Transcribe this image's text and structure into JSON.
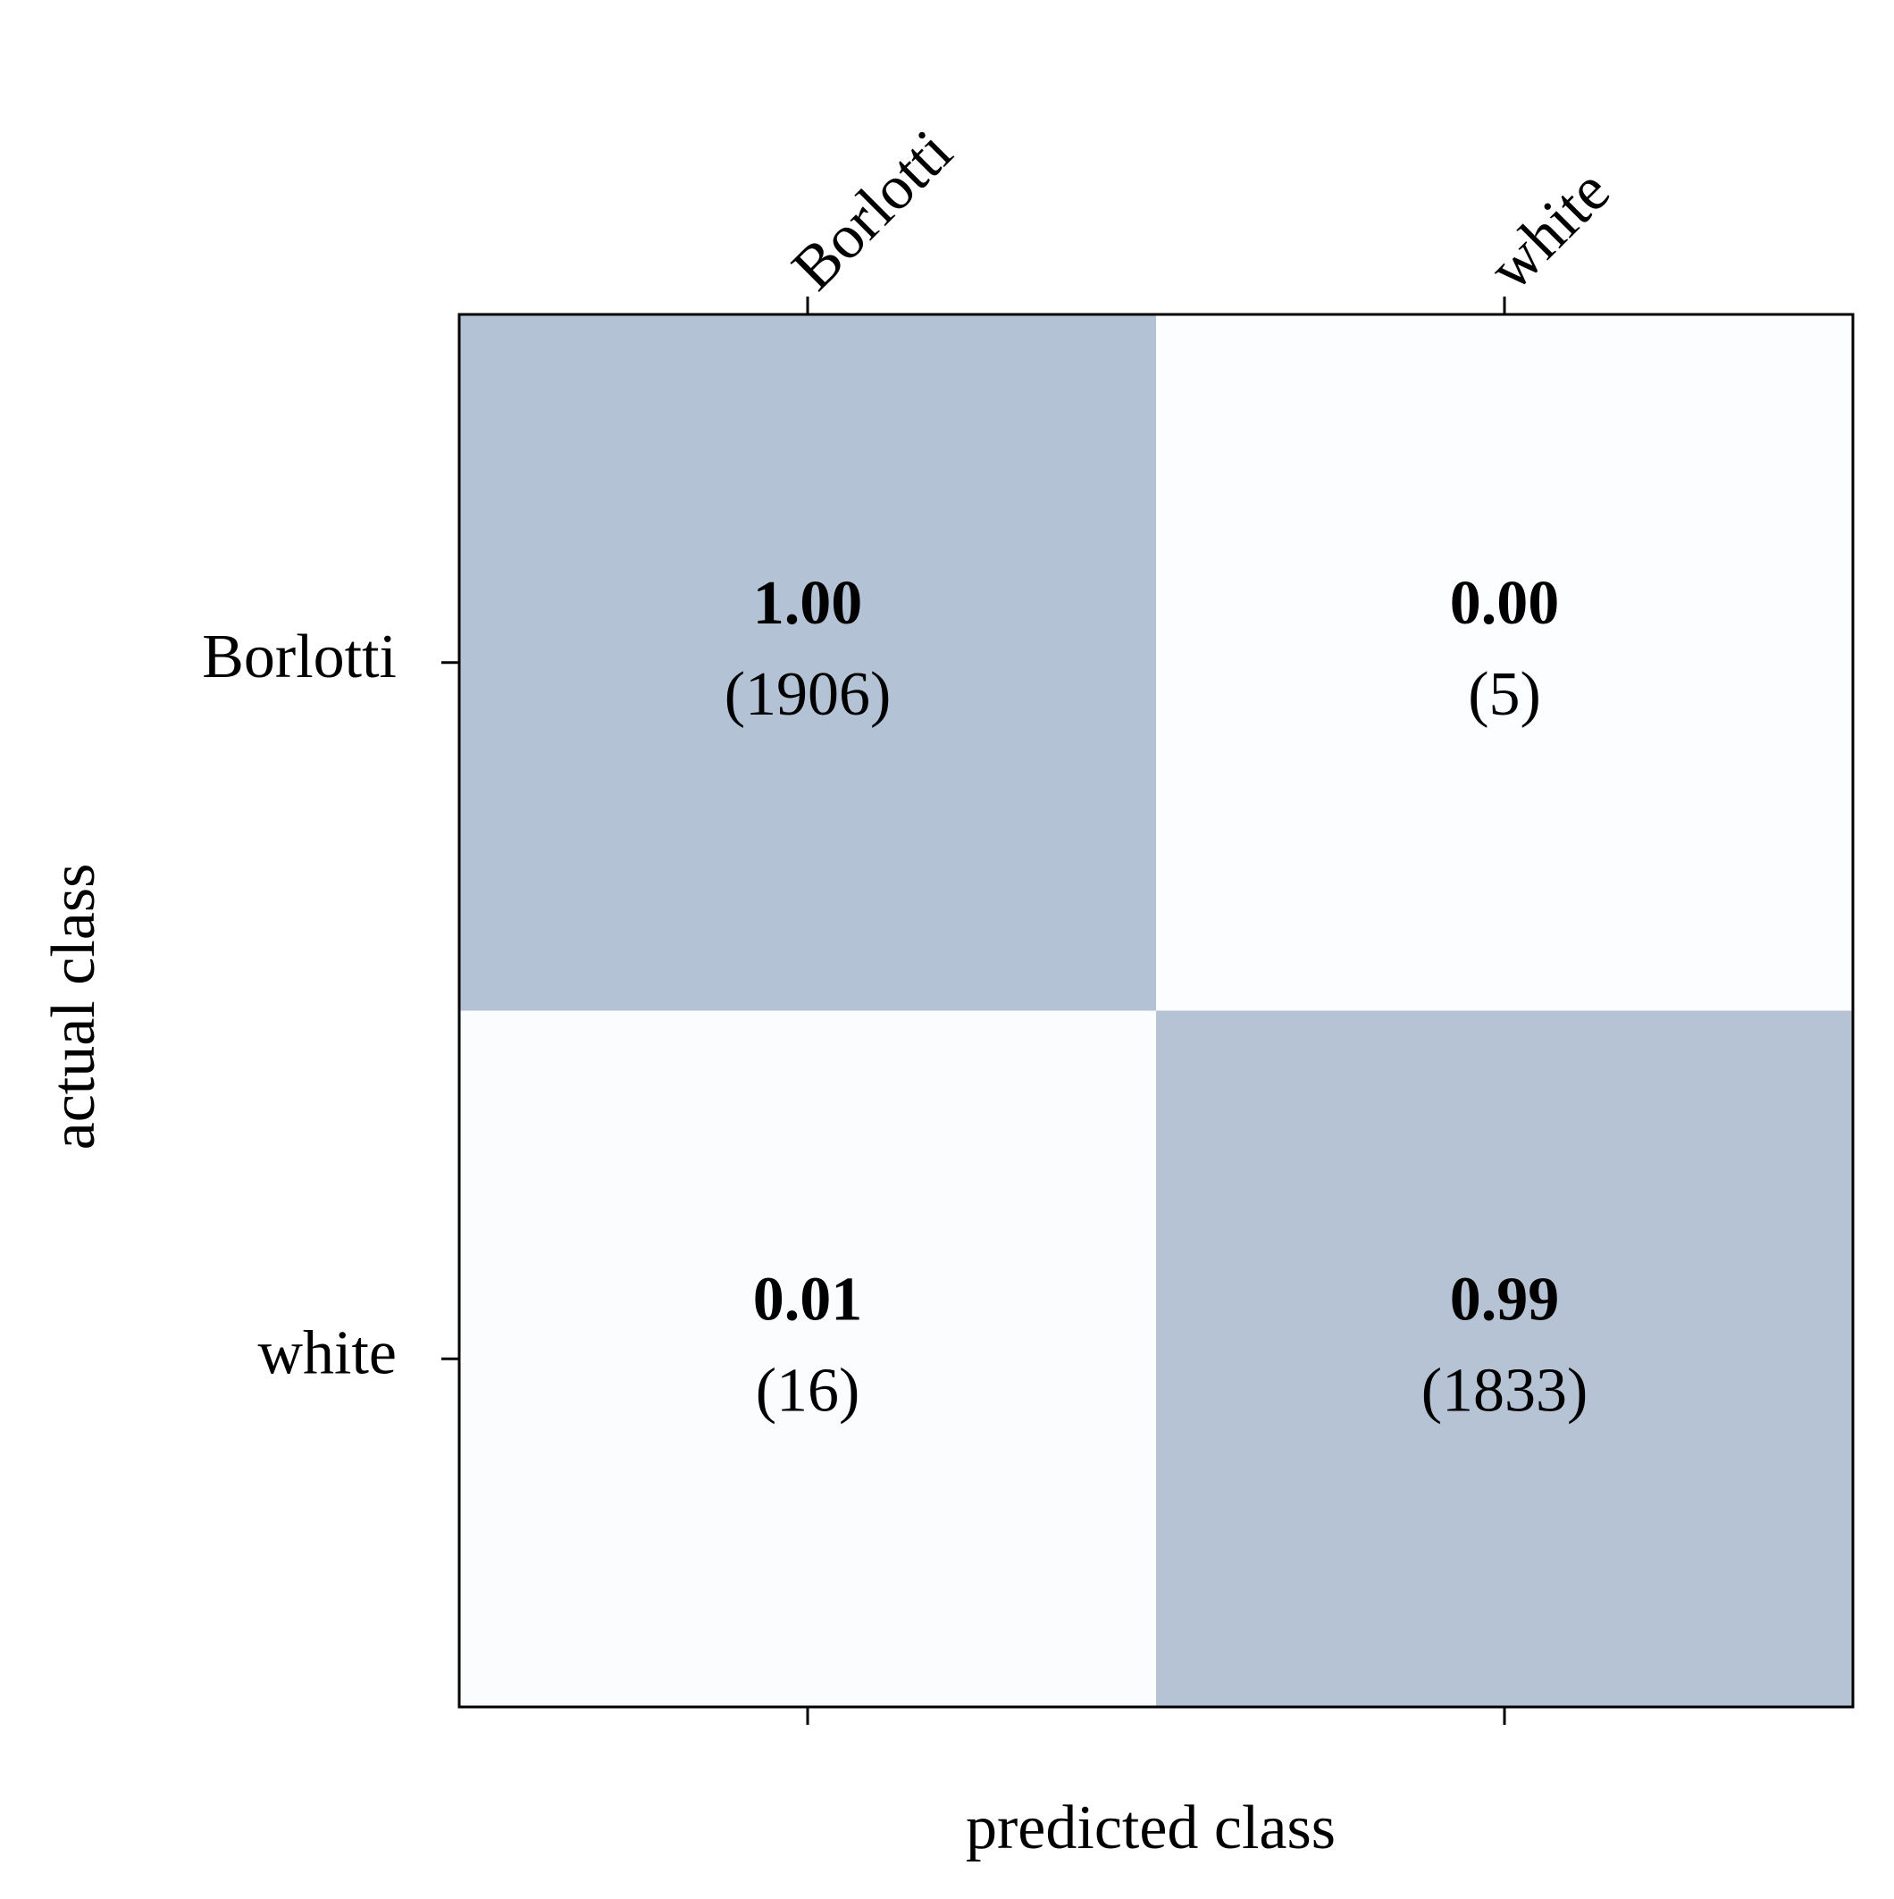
{
  "chart_data": {
    "type": "heatmap",
    "x_label": "predicted class",
    "y_label": "actual class",
    "x_categories": [
      "Borlotti",
      "white"
    ],
    "y_categories": [
      "Borlotti",
      "white"
    ],
    "values": [
      [
        1,
        0
      ],
      [
        0.01,
        0.99
      ]
    ],
    "value_labels": [
      [
        "1.00",
        "0.00"
      ],
      [
        "0.01",
        "0.99"
      ]
    ],
    "counts": [
      [
        1906,
        5
      ],
      [
        16,
        1833
      ]
    ],
    "count_labels": [
      [
        "(1906)",
        "(5)"
      ],
      [
        "(16)",
        "(1833)"
      ]
    ],
    "colors": [
      "#fcfdfe",
      "#b4c2d5"
    ]
  }
}
